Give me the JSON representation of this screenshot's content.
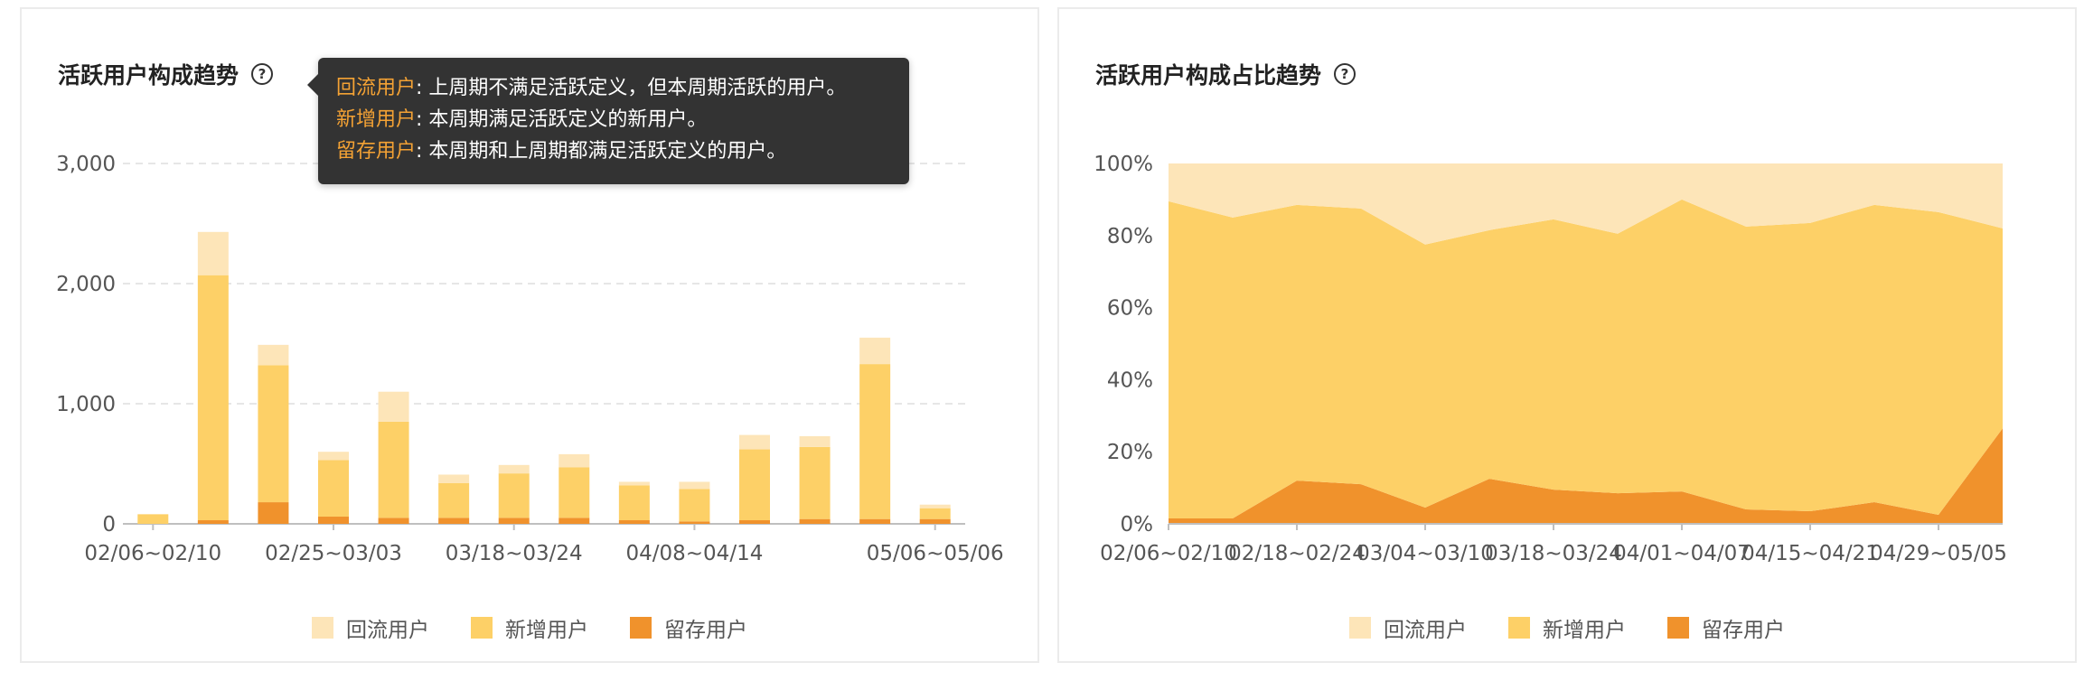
{
  "colors": {
    "returning": "#fde5b8",
    "new": "#fdd067",
    "retained": "#f0922c",
    "grid": "#e6e6e6",
    "axis": "#bfbfbf",
    "tick": "#555555"
  },
  "left": {
    "title": "活跃用户构成趋势",
    "help": "?",
    "tooltip": [
      {
        "key": "回流用户",
        "text": ": 上周期不满足活跃定义，但本周期活跃的用户。"
      },
      {
        "key": "新增用户",
        "text": ": 本周期满足活跃定义的新用户。"
      },
      {
        "key": "留存用户",
        "text": ": 本周期和上周期都满足活跃定义的用户。"
      }
    ],
    "legend": [
      "回流用户",
      "新增用户",
      "留存用户"
    ]
  },
  "right": {
    "title": "活跃用户构成占比趋势",
    "help": "?",
    "legend": [
      "回流用户",
      "新增用户",
      "留存用户"
    ]
  },
  "chart_data": [
    {
      "type": "bar",
      "stacked": true,
      "title": "活跃用户构成趋势",
      "x_tick_labels": [
        "02/06~02/10",
        "02/25~03/03",
        "03/18~03/24",
        "04/08~04/14",
        "05/06~05/06"
      ],
      "x_tick_indices": [
        0,
        3,
        6,
        9,
        13
      ],
      "ylim": [
        0,
        3000
      ],
      "yticks": [
        0,
        1000,
        2000,
        3000
      ],
      "ytick_labels": [
        "0",
        "1,000",
        "2,000",
        "3,000"
      ],
      "grid": true,
      "legend_position": "bottom",
      "series": [
        {
          "name": "留存用户",
          "values": [
            0,
            30,
            180,
            60,
            50,
            50,
            50,
            50,
            30,
            20,
            30,
            40,
            40,
            40
          ]
        },
        {
          "name": "新增用户",
          "values": [
            80,
            2040,
            1140,
            470,
            800,
            290,
            370,
            420,
            290,
            270,
            590,
            600,
            1290,
            90
          ]
        },
        {
          "name": "回流用户",
          "values": [
            0,
            360,
            170,
            70,
            250,
            70,
            70,
            110,
            30,
            60,
            120,
            90,
            220,
            30
          ]
        }
      ]
    },
    {
      "type": "area",
      "stacked": true,
      "title": "活跃用户构成占比趋势",
      "x_tick_labels": [
        "02/06~02/10",
        "02/18~02/24",
        "03/04~03/10",
        "03/18~03/24",
        "04/01~04/07",
        "04/15~04/21",
        "04/29~05/05"
      ],
      "x_tick_indices": [
        0,
        2,
        4,
        6,
        8,
        10,
        12
      ],
      "ylim": [
        0,
        100
      ],
      "yticks": [
        0,
        20,
        40,
        60,
        80,
        100
      ],
      "ytick_labels": [
        "0%",
        "20%",
        "40%",
        "60%",
        "80%",
        "100%"
      ],
      "grid": false,
      "legend_position": "bottom",
      "series": [
        {
          "name": "留存用户",
          "values": [
            1.5,
            1.5,
            12,
            11,
            4.5,
            12.5,
            9.5,
            8.5,
            9,
            4,
            3.5,
            6,
            2.5,
            26.5
          ]
        },
        {
          "name": "新增用户",
          "values": [
            88,
            83.5,
            76.5,
            76.5,
            73,
            69,
            75,
            72,
            81,
            78.5,
            80,
            82.5,
            84,
            55.5
          ]
        },
        {
          "name": "回流用户",
          "values": [
            10.5,
            15,
            11.5,
            12.5,
            22.5,
            18.5,
            15.5,
            19.5,
            10,
            17.5,
            16.5,
            11.5,
            13.5,
            18
          ]
        }
      ]
    }
  ]
}
